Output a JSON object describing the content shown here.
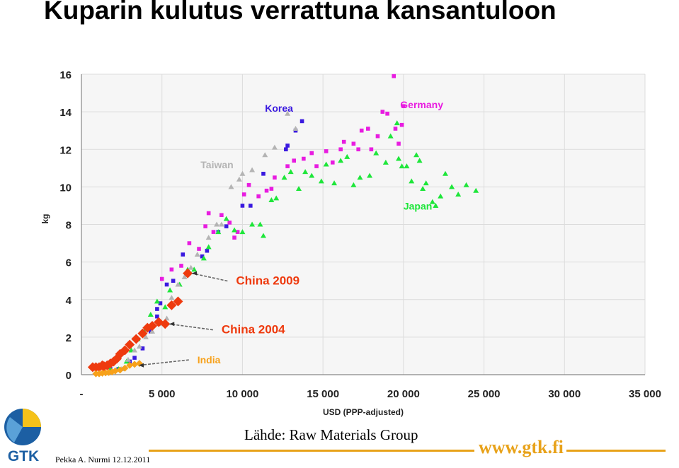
{
  "slide": {
    "title": "Kuparin kulutus verrattuna kansantuloon",
    "source": "Lähde: Raw Materials Group",
    "author": "Pekka A. Nurmi  12.12.2011",
    "website": "www.gtk.fi",
    "logo_text": "GTK"
  },
  "colors": {
    "korea": "#3a1adf",
    "germany": "#e81ce0",
    "japan": "#1ee63a",
    "taiwan": "#b4b4b4",
    "china": "#ee3a0e",
    "india": "#f7a11a",
    "brand_orange": "#e8a21a",
    "brand_blue": "#1c5fa3"
  },
  "chart_data": {
    "type": "scatter",
    "title": "",
    "xlabel": "USD (PPP-adjusted)",
    "ylabel": "kg",
    "xlim": [
      0,
      35000
    ],
    "ylim": [
      0,
      16
    ],
    "x_ticks": [
      0,
      5000,
      10000,
      15000,
      20000,
      25000,
      30000,
      35000
    ],
    "x_tick_labels": [
      "-",
      "5 000",
      "10 000",
      "15 000",
      "20 000",
      "25 000",
      "30 000",
      "35 000"
    ],
    "y_ticks": [
      0,
      2,
      4,
      6,
      8,
      10,
      12,
      14,
      16
    ],
    "y_tick_labels": [
      "0",
      "2",
      "4",
      "6",
      "8",
      "10",
      "12",
      "14",
      "16"
    ],
    "grid": true,
    "series": [
      {
        "name": "Korea",
        "marker": "square",
        "color": "#3a1adf",
        "points": [
          [
            1800,
            0.3
          ],
          [
            2300,
            0.3
          ],
          [
            3000,
            0.7
          ],
          [
            3300,
            0.9
          ],
          [
            3800,
            1.4
          ],
          [
            4300,
            2.3
          ],
          [
            4700,
            3.1
          ],
          [
            4700,
            3.5
          ],
          [
            4900,
            3.8
          ],
          [
            5300,
            4.8
          ],
          [
            5700,
            5.0
          ],
          [
            6300,
            6.4
          ],
          [
            7500,
            6.3
          ],
          [
            7800,
            6.6
          ],
          [
            8500,
            7.6
          ],
          [
            9000,
            7.9
          ],
          [
            10000,
            9.0
          ],
          [
            10500,
            9.0
          ],
          [
            11300,
            10.7
          ],
          [
            12700,
            12.0
          ],
          [
            12800,
            12.2
          ],
          [
            13300,
            13.0
          ],
          [
            13700,
            13.5
          ]
        ]
      },
      {
        "name": "Germany",
        "marker": "square",
        "color": "#e81ce0",
        "points": [
          [
            5000,
            5.1
          ],
          [
            5600,
            5.6
          ],
          [
            6200,
            5.8
          ],
          [
            6700,
            7.0
          ],
          [
            7300,
            6.7
          ],
          [
            7700,
            7.9
          ],
          [
            7900,
            8.6
          ],
          [
            8200,
            7.6
          ],
          [
            8700,
            8.5
          ],
          [
            9200,
            8.1
          ],
          [
            9500,
            7.3
          ],
          [
            9700,
            7.6
          ],
          [
            10100,
            9.6
          ],
          [
            10400,
            10.1
          ],
          [
            11000,
            9.5
          ],
          [
            11500,
            9.8
          ],
          [
            11800,
            9.9
          ],
          [
            12000,
            10.5
          ],
          [
            12800,
            11.1
          ],
          [
            13200,
            11.4
          ],
          [
            13800,
            11.5
          ],
          [
            14300,
            11.8
          ],
          [
            14600,
            11.1
          ],
          [
            15200,
            11.9
          ],
          [
            15600,
            11.3
          ],
          [
            16100,
            12.0
          ],
          [
            16300,
            12.4
          ],
          [
            16900,
            12.3
          ],
          [
            17200,
            12.0
          ],
          [
            17400,
            13.0
          ],
          [
            17800,
            13.1
          ],
          [
            18000,
            12.0
          ],
          [
            18400,
            12.7
          ],
          [
            18700,
            14.0
          ],
          [
            19000,
            13.9
          ],
          [
            19400,
            15.9
          ],
          [
            19500,
            13.1
          ],
          [
            19700,
            12.3
          ],
          [
            19900,
            13.3
          ],
          [
            20000,
            14.3
          ]
        ]
      },
      {
        "name": "Japan",
        "marker": "triangle",
        "color": "#1ee63a",
        "points": [
          [
            1800,
            0.3
          ],
          [
            2300,
            0.3
          ],
          [
            2800,
            0.7
          ],
          [
            3100,
            1.3
          ],
          [
            3500,
            1.9
          ],
          [
            3900,
            2.3
          ],
          [
            4300,
            3.2
          ],
          [
            4700,
            3.9
          ],
          [
            5200,
            3.6
          ],
          [
            5500,
            4.5
          ],
          [
            6100,
            4.8
          ],
          [
            6600,
            5.6
          ],
          [
            7000,
            5.6
          ],
          [
            7600,
            6.2
          ],
          [
            7900,
            6.8
          ],
          [
            8500,
            7.6
          ],
          [
            9000,
            8.3
          ],
          [
            9500,
            7.7
          ],
          [
            10000,
            7.6
          ],
          [
            10600,
            8.0
          ],
          [
            11100,
            8.0
          ],
          [
            11300,
            7.4
          ],
          [
            11800,
            9.3
          ],
          [
            12100,
            9.4
          ],
          [
            12600,
            10.5
          ],
          [
            13000,
            10.8
          ],
          [
            13500,
            9.9
          ],
          [
            13900,
            10.8
          ],
          [
            14300,
            10.6
          ],
          [
            14900,
            10.3
          ],
          [
            15200,
            11.2
          ],
          [
            15700,
            10.2
          ],
          [
            16100,
            11.4
          ],
          [
            16500,
            11.6
          ],
          [
            16900,
            10.1
          ],
          [
            17300,
            10.5
          ],
          [
            17900,
            10.6
          ],
          [
            18300,
            11.8
          ],
          [
            18900,
            11.3
          ],
          [
            19200,
            12.7
          ],
          [
            19600,
            13.4
          ],
          [
            19700,
            11.5
          ],
          [
            19900,
            11.1
          ],
          [
            20200,
            11.1
          ],
          [
            20500,
            10.3
          ],
          [
            20800,
            11.7
          ],
          [
            21000,
            11.4
          ],
          [
            21200,
            9.9
          ],
          [
            21400,
            10.2
          ],
          [
            21800,
            9.2
          ],
          [
            22000,
            9.0
          ],
          [
            22300,
            9.5
          ],
          [
            22600,
            10.7
          ],
          [
            23000,
            10.0
          ],
          [
            23400,
            9.6
          ],
          [
            23900,
            10.1
          ],
          [
            24500,
            9.8
          ]
        ]
      },
      {
        "name": "Taiwan",
        "marker": "triangle",
        "color": "#b4b4b4",
        "points": [
          [
            2500,
            0.3
          ],
          [
            2900,
            0.8
          ],
          [
            3300,
            1.3
          ],
          [
            3600,
            1.5
          ],
          [
            4000,
            2.0
          ],
          [
            4400,
            2.3
          ],
          [
            4800,
            2.7
          ],
          [
            5300,
            3.0
          ],
          [
            5600,
            4.1
          ],
          [
            6000,
            4.8
          ],
          [
            6400,
            5.2
          ],
          [
            6800,
            5.7
          ],
          [
            7200,
            6.4
          ],
          [
            7900,
            7.3
          ],
          [
            8400,
            8.0
          ],
          [
            8700,
            8.0
          ],
          [
            9300,
            10.0
          ],
          [
            9800,
            10.4
          ],
          [
            10000,
            10.7
          ],
          [
            10600,
            10.9
          ],
          [
            11400,
            11.7
          ],
          [
            12000,
            12.1
          ],
          [
            12800,
            13.9
          ],
          [
            13300,
            13.1
          ]
        ]
      },
      {
        "name": "China",
        "marker": "diamond",
        "color": "#ee3a0e",
        "points": [
          [
            700,
            0.4
          ],
          [
            900,
            0.4
          ],
          [
            1100,
            0.4
          ],
          [
            1300,
            0.5
          ],
          [
            1400,
            0.45
          ],
          [
            1600,
            0.5
          ],
          [
            1800,
            0.6
          ],
          [
            2000,
            0.7
          ],
          [
            2200,
            0.85
          ],
          [
            2400,
            1.1
          ],
          [
            2700,
            1.3
          ],
          [
            3000,
            1.6
          ],
          [
            3400,
            1.9
          ],
          [
            3800,
            2.2
          ],
          [
            4100,
            2.5
          ],
          [
            4400,
            2.6
          ],
          [
            4800,
            2.8
          ],
          [
            5200,
            2.7
          ],
          [
            5600,
            3.7
          ],
          [
            6000,
            3.9
          ],
          [
            6600,
            5.4
          ]
        ]
      },
      {
        "name": "India",
        "marker": "diamond",
        "color": "#f7a11a",
        "points": [
          [
            900,
            0.05
          ],
          [
            1100,
            0.05
          ],
          [
            1300,
            0.08
          ],
          [
            1500,
            0.1
          ],
          [
            1700,
            0.12
          ],
          [
            1900,
            0.15
          ],
          [
            2100,
            0.2
          ],
          [
            2400,
            0.25
          ],
          [
            2700,
            0.35
          ],
          [
            3000,
            0.5
          ],
          [
            3300,
            0.55
          ],
          [
            3600,
            0.6
          ]
        ]
      }
    ],
    "annotations": [
      {
        "label": "Korea",
        "color": "#3a1adf",
        "x": 11400,
        "y": 14.0
      },
      {
        "label": "Germany",
        "color": "#e81ce0",
        "x": 19800,
        "y": 14.2
      },
      {
        "label": "Taiwan",
        "color": "#b4b4b4",
        "x": 7400,
        "y": 11.0
      },
      {
        "label": "Japan",
        "color": "#1ee63a",
        "x": 20000,
        "y": 8.8
      },
      {
        "label": "China 2009",
        "color": "#ee3a0e",
        "x": 9600,
        "y": 4.8,
        "arrow_to": [
          6600,
          5.4
        ]
      },
      {
        "label": "China 2004",
        "color": "#ee3a0e",
        "x": 8700,
        "y": 2.2,
        "arrow_to": [
          5200,
          2.7
        ]
      },
      {
        "label": "India",
        "color": "#f7a11a",
        "x": 7200,
        "y": 0.6,
        "arrow_to": [
          3300,
          0.5
        ]
      }
    ]
  }
}
